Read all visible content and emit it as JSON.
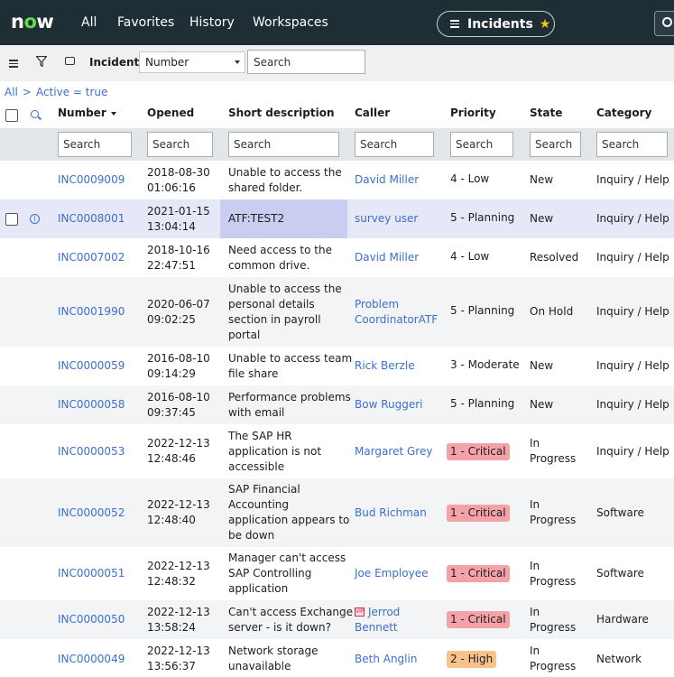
{
  "nav": {
    "logo_prefix": "n",
    "logo_o": "o",
    "logo_suffix": "w",
    "all": "All",
    "favorites": "Favorites",
    "history": "History",
    "workspaces": "Workspaces",
    "module": "Incidents"
  },
  "toolbar": {
    "list_label": "Incidents",
    "field_select": "Number",
    "search_placeholder": "Search"
  },
  "breadcrumb": {
    "root": "All",
    "separator": ">",
    "filter": "Active = true"
  },
  "columns": [
    {
      "label": "Number"
    },
    {
      "label": "Opened"
    },
    {
      "label": "Short description"
    },
    {
      "label": "Caller"
    },
    {
      "label": "Priority"
    },
    {
      "label": "State"
    },
    {
      "label": "Category"
    }
  ],
  "column_search_placeholder": "Search",
  "rows": [
    {
      "number": "INC0009009",
      "opened": [
        "2018-08-30",
        "01:06:16"
      ],
      "desc": [
        "Unable to access the",
        "shared folder."
      ],
      "caller": [
        "David Miller"
      ],
      "priority": "4 - Low",
      "state": [
        "New"
      ],
      "category": "Inquiry / Help"
    },
    {
      "number": "INC0008001",
      "opened": [
        "2021-01-15",
        "13:04:14"
      ],
      "desc": [
        "ATF:TEST2"
      ],
      "caller": [
        "survey user"
      ],
      "priority": "5 - Planning",
      "state": [
        "New"
      ],
      "category": "Inquiry / Help"
    },
    {
      "number": "INC0007002",
      "opened": [
        "2018-10-16",
        "22:47:51"
      ],
      "desc": [
        "Need access to the",
        "common drive."
      ],
      "caller": [
        "David Miller"
      ],
      "priority": "4 - Low",
      "state": [
        "Resolved"
      ],
      "category": "Inquiry / Help"
    },
    {
      "number": "INC0001990",
      "opened": [
        "2020-06-07",
        "09:02:25"
      ],
      "desc": [
        "Unable to access the",
        "personal details",
        "section in payroll",
        "portal"
      ],
      "caller": [
        "Problem",
        "CoordinatorATF"
      ],
      "priority": "5 - Planning",
      "state": [
        "On Hold"
      ],
      "category": "Inquiry / Help"
    },
    {
      "number": "INC0000059",
      "opened": [
        "2016-08-10",
        "09:14:29"
      ],
      "desc": [
        "Unable to access team",
        "file share"
      ],
      "caller": [
        "Rick Berzle"
      ],
      "priority": "3 - Moderate",
      "state": [
        "New"
      ],
      "category": "Inquiry / Help"
    },
    {
      "number": "INC0000058",
      "opened": [
        "2016-08-10",
        "09:37:45"
      ],
      "desc": [
        "Performance problems",
        "with email"
      ],
      "caller": [
        "Bow Ruggeri"
      ],
      "priority": "5 - Planning",
      "state": [
        "New"
      ],
      "category": "Inquiry / Help"
    },
    {
      "number": "INC0000053",
      "opened": [
        "2022-12-13",
        "12:48:46"
      ],
      "desc": [
        "The SAP HR",
        "application is not",
        "accessible"
      ],
      "caller": [
        "Margaret Grey"
      ],
      "priority": "1 - Critical",
      "state": [
        "In",
        "Progress"
      ],
      "category": "Inquiry / Help"
    },
    {
      "number": "INC0000052",
      "opened": [
        "2022-12-13",
        "12:48:40"
      ],
      "desc": [
        "SAP Financial",
        "Accounting",
        "application appears to",
        "be down"
      ],
      "caller": [
        "Bud Richman"
      ],
      "priority": "1 - Critical",
      "state": [
        "In",
        "Progress"
      ],
      "category": "Software"
    },
    {
      "number": "INC0000051",
      "opened": [
        "2022-12-13",
        "12:48:32"
      ],
      "desc": [
        "Manager can't access",
        "SAP Controlling",
        "application"
      ],
      "caller": [
        "Joe Employee"
      ],
      "priority": "1 - Critical",
      "state": [
        "In",
        "Progress"
      ],
      "category": "Software"
    },
    {
      "number": "INC0000050",
      "opened": [
        "2022-12-13",
        "13:58:24"
      ],
      "desc": [
        "Can't access Exchange",
        "server - is it down?"
      ],
      "caller": [
        "Jerrod",
        "Bennett"
      ],
      "priority": "1 - Critical",
      "state": [
        "In",
        "Progress"
      ],
      "category": "Hardware"
    },
    {
      "number": "INC0000049",
      "opened": [
        "2022-12-13",
        "13:56:37"
      ],
      "desc": [
        "Network storage",
        "unavailable"
      ],
      "caller": [
        "Beth Anglin"
      ],
      "priority": "2 - High",
      "state": [
        "In",
        "Progress"
      ],
      "category": "Network"
    }
  ],
  "colors": {
    "nav_bg": "#1f2d35",
    "link": "#3b6fcf",
    "critical": "#f4a2a8",
    "high": "#f7c38a",
    "star": "#f5c518"
  }
}
